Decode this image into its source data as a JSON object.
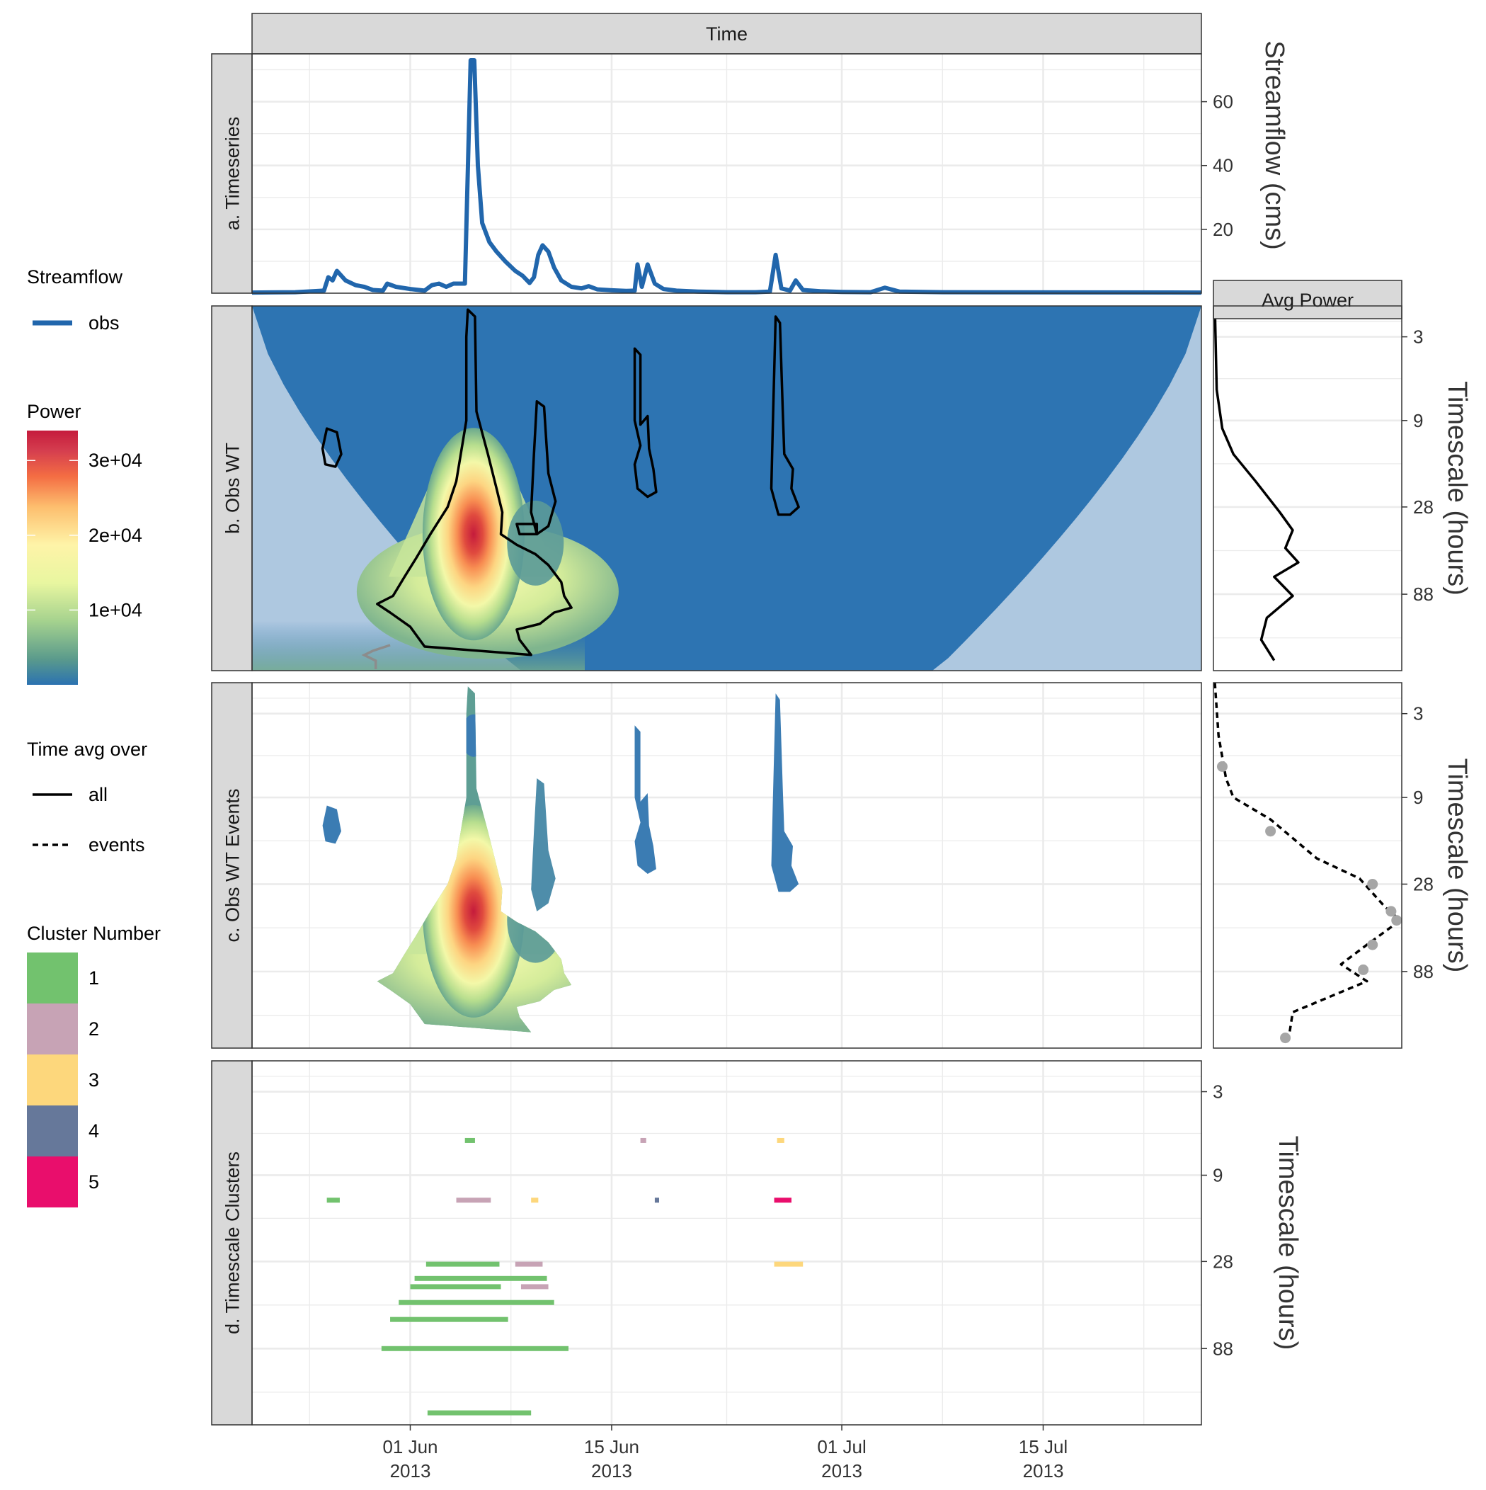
{
  "chart_data": {
    "type": "line",
    "facet_strip": "Time",
    "side_strip": "Avg Power",
    "panels": [
      {
        "id": "a",
        "label": "a.  Timeseries",
        "ylabel": "Streamflow (cms)"
      },
      {
        "id": "b",
        "label": "b.  Obs WT",
        "ylabel": "Timescale (hours)"
      },
      {
        "id": "c",
        "label": "c.  Obs WT Events",
        "ylabel": "Timescale (hours)"
      },
      {
        "id": "d",
        "label": "d.  Timescale Clusters",
        "ylabel": "Timescale (hours)"
      }
    ],
    "x_ticks": [
      {
        "date": "2013-06-01",
        "label": "01 Jun",
        "year": "2013"
      },
      {
        "date": "2013-06-15",
        "label": "15 Jun",
        "year": "2013"
      },
      {
        "date": "2013-07-01",
        "label": "01 Jul",
        "year": "2013"
      },
      {
        "date": "2013-07-15",
        "label": "15 Jul",
        "year": "2013"
      }
    ],
    "x_range": [
      "2013-05-21",
      "2013-07-26"
    ],
    "streamflow": {
      "y_ticks": [
        20,
        40,
        60
      ],
      "ylim": [
        0,
        75
      ],
      "series_name": "obs",
      "color": "#2166AC",
      "points": [
        [
          "2013-05-21",
          0.2
        ],
        [
          "2013-05-24",
          0.3
        ],
        [
          "2013-05-26",
          0.8
        ],
        [
          "2013-05-26.3",
          5
        ],
        [
          "2013-05-26.6",
          4
        ],
        [
          "2013-05-26.9",
          7
        ],
        [
          "2013-05-27.5",
          4
        ],
        [
          "2013-05-28.2",
          2.5
        ],
        [
          "2013-05-28.8",
          2
        ],
        [
          "2013-05-29.4",
          1
        ],
        [
          "2013-05-30.1",
          0.8
        ],
        [
          "2013-05-30.4",
          3
        ],
        [
          "2013-05-31",
          2
        ],
        [
          "2013-06-01",
          1.3
        ],
        [
          "2013-06-02",
          0.8
        ],
        [
          "2013-06-02.5",
          2.5
        ],
        [
          "2013-06-03",
          3
        ],
        [
          "2013-06-03.5",
          2
        ],
        [
          "2013-06-04",
          3
        ],
        [
          "2013-06-04.8",
          3
        ],
        [
          "2013-06-05.2",
          73
        ],
        [
          "2013-06-05.45",
          73
        ],
        [
          "2013-06-05.7",
          40
        ],
        [
          "2013-06-06",
          22
        ],
        [
          "2013-06-06.5",
          16
        ],
        [
          "2013-06-07",
          13
        ],
        [
          "2013-06-07.6",
          10
        ],
        [
          "2013-06-08.3",
          7
        ],
        [
          "2013-06-08.8",
          5.5
        ],
        [
          "2013-06-09.3",
          3.2
        ],
        [
          "2013-06-09.6",
          5
        ],
        [
          "2013-06-09.9",
          12
        ],
        [
          "2013-06-10.2",
          15
        ],
        [
          "2013-06-10.6",
          13
        ],
        [
          "2013-06-11",
          8
        ],
        [
          "2013-06-11.5",
          4
        ],
        [
          "2013-06-12.2",
          2
        ],
        [
          "2013-06-12.9",
          1.5
        ],
        [
          "2013-06-13.4",
          2.2
        ],
        [
          "2013-06-14",
          1.2
        ],
        [
          "2013-06-15",
          0.9
        ],
        [
          "2013-06-16",
          0.7
        ],
        [
          "2013-06-16.6",
          0.8
        ],
        [
          "2013-06-16.8",
          9
        ],
        [
          "2013-06-17.1",
          2
        ],
        [
          "2013-06-17.5",
          9
        ],
        [
          "2013-06-18",
          3
        ],
        [
          "2013-06-18.6",
          1.3
        ],
        [
          "2013-06-19.5",
          0.8
        ],
        [
          "2013-06-21",
          0.5
        ],
        [
          "2013-06-23",
          0.3
        ],
        [
          "2013-06-25",
          0.3
        ],
        [
          "2013-06-26",
          0.5
        ],
        [
          "2013-06-26.4",
          12
        ],
        [
          "2013-06-26.8",
          1.5
        ],
        [
          "2013-06-27.4",
          0.8
        ],
        [
          "2013-06-27.8",
          4
        ],
        [
          "2013-06-28.3",
          1
        ],
        [
          "2013-06-29.5",
          0.6
        ],
        [
          "2013-07-01",
          0.4
        ],
        [
          "2013-07-03",
          0.3
        ],
        [
          "2013-07-04",
          1.7
        ],
        [
          "2013-07-05",
          0.5
        ],
        [
          "2013-07-08",
          0.3
        ],
        [
          "2013-07-26",
          0.2
        ]
      ]
    },
    "timescale": {
      "y_ticks": [
        3,
        9,
        28,
        88
      ],
      "ylim": [
        2,
        240
      ]
    },
    "power": {
      "legend_title": "Power",
      "legend_ticks": [
        {
          "value": 10000,
          "label": "1e+04"
        },
        {
          "value": 20000,
          "label": "2e+04"
        },
        {
          "value": 30000,
          "label": "3e+04"
        }
      ],
      "range": [
        0,
        34000
      ],
      "colors": [
        "#2B72B0",
        "#5A9A8C",
        "#A5D28E",
        "#E8F6A0",
        "#FEF4A8",
        "#FDBE6E",
        "#F46D43",
        "#D53E4F",
        "#C51B3C"
      ]
    },
    "avg_power": {
      "all": [
        [
          0,
          2
        ],
        [
          0.01,
          6
        ],
        [
          0.04,
          10
        ],
        [
          0.1,
          14
        ],
        [
          0.22,
          20
        ],
        [
          0.35,
          30
        ],
        [
          0.42,
          38
        ],
        [
          0.38,
          48
        ],
        [
          0.45,
          58
        ],
        [
          0.32,
          70
        ],
        [
          0.42,
          90
        ],
        [
          0.28,
          120
        ],
        [
          0.25,
          160
        ],
        [
          0.32,
          210
        ]
      ],
      "events": [
        [
          0,
          2
        ],
        [
          0.02,
          4
        ],
        [
          0.06,
          7
        ],
        [
          0.1,
          9
        ],
        [
          0.3,
          12
        ],
        [
          0.55,
          20
        ],
        [
          0.78,
          26
        ],
        [
          0.92,
          38
        ],
        [
          1.0,
          45
        ],
        [
          0.82,
          62
        ],
        [
          0.68,
          80
        ],
        [
          0.82,
          100
        ],
        [
          0.42,
          150
        ],
        [
          0.4,
          205
        ]
      ],
      "event_points": [
        [
          0.04,
          6
        ],
        [
          0.3,
          14
        ],
        [
          0.85,
          28
        ],
        [
          0.95,
          40
        ],
        [
          0.98,
          45
        ],
        [
          0.85,
          62
        ],
        [
          0.8,
          86
        ],
        [
          0.38,
          210
        ]
      ]
    },
    "legend_streamflow": {
      "title": "Streamflow",
      "entries": [
        "obs"
      ]
    },
    "legend_timeavg": {
      "title": "Time avg over",
      "entries": [
        "all",
        "events"
      ]
    },
    "legend_cluster": {
      "title": "Cluster Number",
      "entries": [
        {
          "label": "1",
          "color": "#72C26E"
        },
        {
          "label": "2",
          "color": "#C7A3B5"
        },
        {
          "label": "3",
          "color": "#FDD77C"
        },
        {
          "label": "4",
          "color": "#66789A"
        },
        {
          "label": "5",
          "color": "#E90E6C"
        }
      ]
    },
    "clusters": [
      {
        "start": "2013-06-04.8",
        "end": "2013-06-05.5",
        "timescale": 5.7,
        "cluster": 1
      },
      {
        "start": "2013-06-17",
        "end": "2013-06-17.4",
        "timescale": 5.7,
        "cluster": 2
      },
      {
        "start": "2013-06-26.5",
        "end": "2013-06-27",
        "timescale": 5.7,
        "cluster": 3
      },
      {
        "start": "2013-05-26.2",
        "end": "2013-05-27.1",
        "timescale": 12.5,
        "cluster": 1
      },
      {
        "start": "2013-06-04.2",
        "end": "2013-06-06.6",
        "timescale": 12.5,
        "cluster": 2
      },
      {
        "start": "2013-06-09.4",
        "end": "2013-06-09.9",
        "timescale": 12.5,
        "cluster": 3
      },
      {
        "start": "2013-06-18",
        "end": "2013-06-18.3",
        "timescale": 12.5,
        "cluster": 4
      },
      {
        "start": "2013-06-26.3",
        "end": "2013-06-27.5",
        "timescale": 12.5,
        "cluster": 5
      },
      {
        "start": "2013-06-26.3",
        "end": "2013-06-28.3",
        "timescale": 29,
        "cluster": 3
      },
      {
        "start": "2013-06-02.1",
        "end": "2013-06-07.2",
        "timescale": 29,
        "cluster": 1
      },
      {
        "start": "2013-06-08.3",
        "end": "2013-06-10.2",
        "timescale": 29,
        "cluster": 2
      },
      {
        "start": "2013-06-01.3",
        "end": "2013-06-10.5",
        "timescale": 35,
        "cluster": 1
      },
      {
        "start": "2013-06-01",
        "end": "2013-06-07.3",
        "timescale": 39,
        "cluster": 1
      },
      {
        "start": "2013-06-08.7",
        "end": "2013-06-10.6",
        "timescale": 39,
        "cluster": 2
      },
      {
        "start": "2013-05-31.2",
        "end": "2013-06-11",
        "timescale": 48,
        "cluster": 1
      },
      {
        "start": "2013-05-30.6",
        "end": "2013-06-07.8",
        "timescale": 60,
        "cluster": 1
      },
      {
        "start": "2013-05-30",
        "end": "2013-06-12",
        "timescale": 88,
        "cluster": 1
      },
      {
        "start": "2013-06-02.2",
        "end": "2013-06-09.4",
        "timescale": 205,
        "cluster": 1
      }
    ]
  }
}
